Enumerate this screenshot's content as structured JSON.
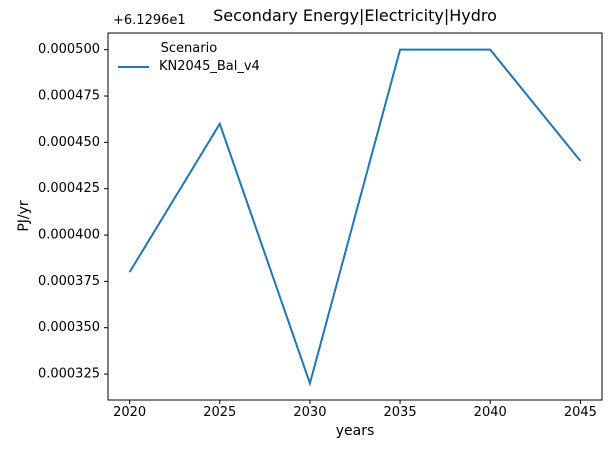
{
  "chart_data": {
    "type": "line",
    "title": "Secondary Energy|Electricity|Hydro",
    "xlabel": "years",
    "ylabel": "PJ/yr",
    "y_offset_text": "+6.1296e1",
    "offset_value": 61.296,
    "x": [
      2020,
      2025,
      2030,
      2035,
      2040,
      2045
    ],
    "series": [
      {
        "name": "KN2045_Bal_v4",
        "color": "#1f77b4",
        "values": [
          61.29638,
          61.29646,
          61.29632,
          61.2965,
          61.2965,
          61.29644
        ]
      }
    ],
    "legend": {
      "title": "Scenario",
      "position": "upper-left",
      "frame": false
    },
    "xticks": [
      2020,
      2025,
      2030,
      2035,
      2040,
      2045
    ],
    "xtick_labels": [
      "2020",
      "2025",
      "2030",
      "2035",
      "2040",
      "2045"
    ],
    "yticks_offset_relative": [
      0.000325,
      0.00035,
      0.000375,
      0.0004,
      0.000425,
      0.00045,
      0.000475,
      0.0005
    ],
    "ytick_labels": [
      "0.000325",
      "0.000350",
      "0.000375",
      "0.000400",
      "0.000425",
      "0.000450",
      "0.000475",
      "0.000500"
    ],
    "xlim": [
      2018.8,
      2046.2
    ],
    "ylim_offset_relative": [
      0.000311,
      0.000509
    ],
    "grid": false,
    "axis_color": "#000000",
    "background_color": "#ffffff"
  }
}
